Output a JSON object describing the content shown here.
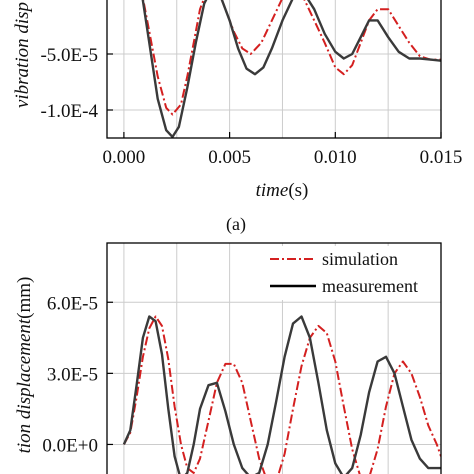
{
  "colors": {
    "simulation": "#d42020",
    "measurement": "#3a3a3a",
    "grid": "#cccccc",
    "axis": "#000000"
  },
  "chart_data": [
    {
      "type": "line",
      "panel_label": "(a)",
      "xlabel_italic": "time",
      "xlabel_unit": "(s)",
      "ylabel": "vibration disp",
      "xlim": [
        -0.0008,
        0.015
      ],
      "ylim": [
        -0.000125,
        0.0
      ],
      "x_ticks": [
        0.0,
        0.005,
        0.01,
        0.015
      ],
      "x_tick_labels": [
        "0.000",
        "0.005",
        "0.010",
        "0.015"
      ],
      "y_ticks": [
        -5e-05,
        -0.0001
      ],
      "y_tick_labels": [
        "-5.0E-5",
        "-1.0E-4"
      ],
      "grid": true,
      "series": [
        {
          "id": "simulation",
          "style": "dash-dot",
          "x": [
            0.0008,
            0.0012,
            0.0016,
            0.002,
            0.0023,
            0.0027,
            0.003,
            0.0033,
            0.0036,
            0.004,
            0.0044,
            0.0048,
            0.0052,
            0.0056,
            0.006,
            0.0065,
            0.007,
            0.0075,
            0.008,
            0.0085,
            0.009,
            0.0095,
            0.01,
            0.0104,
            0.0108,
            0.0112,
            0.0116,
            0.012,
            0.0125,
            0.013,
            0.0135,
            0.014,
            0.0145,
            0.015
          ],
          "y": [
            1e-05,
            -3e-05,
            -7e-05,
            -9.8e-05,
            -0.000104,
            -9.5e-05,
            -7e-05,
            -4e-05,
            -1e-05,
            1e-05,
            1e-05,
            -1e-05,
            -3e-05,
            -4.5e-05,
            -5e-05,
            -4e-05,
            -2e-05,
            0.0,
            1e-05,
            0.0,
            -2e-05,
            -4e-05,
            -6.2e-05,
            -6.8e-05,
            -6e-05,
            -4e-05,
            -2e-05,
            -1e-05,
            -1e-05,
            -2.5e-05,
            -4e-05,
            -5.2e-05,
            -5.5e-05,
            -5.5e-05
          ]
        },
        {
          "id": "measurement",
          "style": "solid",
          "x": [
            0.0008,
            0.0012,
            0.0016,
            0.002,
            0.0023,
            0.0026,
            0.003,
            0.0034,
            0.0038,
            0.0042,
            0.0046,
            0.005,
            0.0054,
            0.0058,
            0.0062,
            0.0066,
            0.007,
            0.0075,
            0.008,
            0.0085,
            0.009,
            0.0095,
            0.01,
            0.0104,
            0.0108,
            0.0112,
            0.0116,
            0.012,
            0.0125,
            0.013,
            0.0135,
            0.014,
            0.0145,
            0.015
          ],
          "y": [
            1e-05,
            -4e-05,
            -9e-05,
            -0.000118,
            -0.000124,
            -0.000115,
            -8e-05,
            -4e-05,
            -5e-06,
            1e-05,
            0.0,
            -2e-05,
            -4.5e-05,
            -6.3e-05,
            -6.8e-05,
            -6.2e-05,
            -4.5e-05,
            -2e-05,
            0.0,
            5e-06,
            -1e-05,
            -3.2e-05,
            -4.8e-05,
            -5.4e-05,
            -5e-05,
            -3.5e-05,
            -2e-05,
            -2e-05,
            -3.5e-05,
            -4.8e-05,
            -5.4e-05,
            -5.4e-05,
            -5.5e-05,
            -5.6e-05
          ]
        }
      ]
    },
    {
      "type": "line",
      "ylabel_partial": "tion displacement",
      "ylabel_unit": "(mm)",
      "xlim": [
        -0.0008,
        0.015
      ],
      "ylim": [
        -1.5e-05,
        8.5e-05
      ],
      "y_ticks": [
        6e-05,
        3e-05,
        0.0
      ],
      "y_tick_labels": [
        "6.0E-5",
        "3.0E-5",
        "0.0E+0"
      ],
      "x_gridlines": [
        0.0,
        0.0025,
        0.005,
        0.0075,
        0.01,
        0.0125,
        0.015
      ],
      "grid": true,
      "legend": {
        "placement": "top-right",
        "entries": [
          {
            "series": "simulation",
            "label": "simulation"
          },
          {
            "series": "measurement",
            "label": "measurement"
          }
        ]
      },
      "series": [
        {
          "id": "simulation",
          "style": "dash-dot",
          "x": [
            0.0,
            0.0003,
            0.0006,
            0.0009,
            0.0012,
            0.0015,
            0.0018,
            0.0021,
            0.0024,
            0.0027,
            0.003,
            0.0033,
            0.0036,
            0.004,
            0.0044,
            0.0048,
            0.0052,
            0.0056,
            0.006,
            0.0064,
            0.0068,
            0.0072,
            0.0076,
            0.008,
            0.0084,
            0.0088,
            0.0092,
            0.0096,
            0.01,
            0.0104,
            0.0108,
            0.0112,
            0.0116,
            0.012,
            0.0124,
            0.0128,
            0.0132,
            0.0136,
            0.014,
            0.0144,
            0.0148,
            0.015
          ],
          "y": [
            0.0,
            5e-06,
            2e-05,
            3.7e-05,
            4.9e-05,
            5.4e-05,
            5e-05,
            3.6e-05,
            1.6e-05,
            0.0,
            -1e-05,
            -1.2e-05,
            -6e-06,
            1e-05,
            2.6e-05,
            3.4e-05,
            3.4e-05,
            2.6e-05,
            1e-05,
            -6e-06,
            -1.6e-05,
            -1.6e-05,
            -4e-06,
            1.5e-05,
            3.3e-05,
            4.5e-05,
            5e-05,
            4.7e-05,
            3.5e-05,
            1.6e-05,
            -2e-06,
            -1.4e-05,
            -1.4e-05,
            -2e-06,
            1.6e-05,
            3e-05,
            3.5e-05,
            3e-05,
            2e-05,
            8e-06,
            0.0,
            -5e-06
          ]
        },
        {
          "id": "measurement",
          "style": "solid",
          "x": [
            0.0,
            0.0003,
            0.0006,
            0.0009,
            0.0012,
            0.0015,
            0.0018,
            0.0021,
            0.0024,
            0.0027,
            0.003,
            0.0033,
            0.0036,
            0.004,
            0.0044,
            0.0048,
            0.0052,
            0.0056,
            0.006,
            0.0064,
            0.0068,
            0.0072,
            0.0076,
            0.008,
            0.0084,
            0.0088,
            0.0092,
            0.0096,
            0.01,
            0.0104,
            0.0108,
            0.0112,
            0.0116,
            0.012,
            0.0124,
            0.0128,
            0.0132,
            0.0136,
            0.014,
            0.0144,
            0.0148,
            0.015
          ],
          "y": [
            0.0,
            6e-06,
            2.5e-05,
            4.5e-05,
            5.4e-05,
            5.2e-05,
            3.8e-05,
            1.5e-05,
            -5e-06,
            -1.5e-05,
            -1.2e-05,
            0.0,
            1.5e-05,
            2.5e-05,
            2.6e-05,
            1.4e-05,
            0.0,
            -1e-05,
            -1.4e-05,
            -1.2e-05,
            0.0,
            1.8e-05,
            3.7e-05,
            5.1e-05,
            5.4e-05,
            4.5e-05,
            2.6e-05,
            6e-06,
            -8e-06,
            -1.4e-05,
            -1e-05,
            4e-06,
            2.2e-05,
            3.5e-05,
            3.7e-05,
            3e-05,
            1.6e-05,
            2e-06,
            -6e-06,
            -1e-05,
            -1e-05,
            -1e-05
          ]
        }
      ]
    }
  ]
}
